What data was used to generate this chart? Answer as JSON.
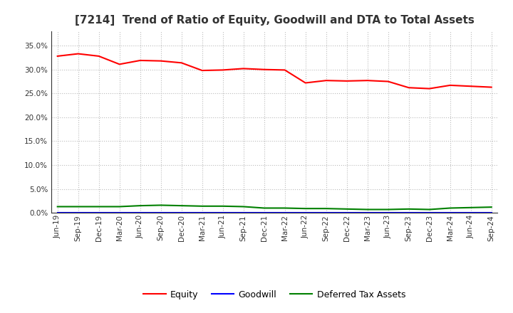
{
  "title": "[7214]  Trend of Ratio of Equity, Goodwill and DTA to Total Assets",
  "x_labels": [
    "Jun-19",
    "Sep-19",
    "Dec-19",
    "Mar-20",
    "Jun-20",
    "Sep-20",
    "Dec-20",
    "Mar-21",
    "Jun-21",
    "Sep-21",
    "Dec-21",
    "Mar-22",
    "Jun-22",
    "Sep-22",
    "Dec-22",
    "Mar-23",
    "Jun-23",
    "Sep-23",
    "Dec-23",
    "Mar-24",
    "Jun-24",
    "Sep-24"
  ],
  "equity": [
    0.328,
    0.333,
    0.328,
    0.311,
    0.319,
    0.318,
    0.314,
    0.298,
    0.299,
    0.302,
    0.3,
    0.299,
    0.272,
    0.277,
    0.276,
    0.277,
    0.275,
    0.262,
    0.26,
    0.267,
    0.265,
    0.263
  ],
  "goodwill": [
    0.0,
    0.0,
    0.0,
    0.0,
    0.0,
    0.0,
    0.0,
    0.0,
    0.0,
    0.0,
    0.0,
    0.0,
    0.0,
    0.0,
    0.0,
    0.0,
    0.0,
    0.0,
    0.0,
    0.0,
    0.0,
    0.0
  ],
  "dta": [
    0.013,
    0.013,
    0.013,
    0.013,
    0.015,
    0.016,
    0.015,
    0.014,
    0.014,
    0.013,
    0.01,
    0.01,
    0.009,
    0.009,
    0.008,
    0.007,
    0.007,
    0.008,
    0.007,
    0.01,
    0.011,
    0.012
  ],
  "equity_color": "#ff0000",
  "goodwill_color": "#0000ff",
  "dta_color": "#008000",
  "ylim": [
    0.0,
    0.38
  ],
  "yticks": [
    0.0,
    0.05,
    0.1,
    0.15,
    0.2,
    0.25,
    0.3,
    0.35
  ],
  "background_color": "#ffffff",
  "grid_color": "#bbbbbb",
  "title_fontsize": 11,
  "tick_fontsize": 7.5,
  "legend_labels": [
    "Equity",
    "Goodwill",
    "Deferred Tax Assets"
  ],
  "title_color": "#333333"
}
